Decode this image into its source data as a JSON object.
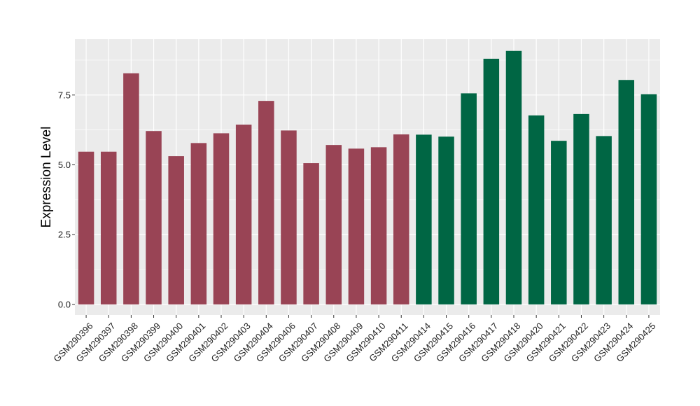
{
  "chart_data": {
    "type": "bar",
    "title": "",
    "xlabel": "",
    "ylabel": "Expression Level",
    "ylim": [
      -0.38,
      9.5
    ],
    "yticks": [
      0.0,
      2.5,
      5.0,
      7.5
    ],
    "ytick_labels": [
      "0.0",
      "2.5",
      "5.0",
      "7.5"
    ],
    "grid": true,
    "legend": "none",
    "categories": [
      "GSM290396",
      "GSM290397",
      "GSM290398",
      "GSM290399",
      "GSM290400",
      "GSM290401",
      "GSM290402",
      "GSM290403",
      "GSM290404",
      "GSM290406",
      "GSM290407",
      "GSM290408",
      "GSM290409",
      "GSM290410",
      "GSM290411",
      "GSM290414",
      "GSM290415",
      "GSM290416",
      "GSM290417",
      "GSM290418",
      "GSM290420",
      "GSM290421",
      "GSM290422",
      "GSM290423",
      "GSM290424",
      "GSM290425"
    ],
    "values": [
      5.47,
      5.47,
      8.28,
      6.21,
      5.31,
      5.78,
      6.13,
      6.44,
      7.29,
      6.23,
      5.06,
      5.71,
      5.58,
      5.63,
      6.09,
      6.08,
      6.01,
      7.56,
      8.8,
      9.08,
      6.77,
      5.86,
      6.82,
      6.03,
      8.04,
      7.53
    ],
    "bar_colors": [
      "#994455",
      "#994455",
      "#994455",
      "#994455",
      "#994455",
      "#994455",
      "#994455",
      "#994455",
      "#994455",
      "#994455",
      "#994455",
      "#994455",
      "#994455",
      "#994455",
      "#994455",
      "#006644",
      "#006644",
      "#006644",
      "#006644",
      "#006644",
      "#006644",
      "#006644",
      "#006644",
      "#006644",
      "#006644",
      "#006644"
    ],
    "panel_background": "#EBEBEB",
    "grid_color": "#FFFFFF"
  }
}
